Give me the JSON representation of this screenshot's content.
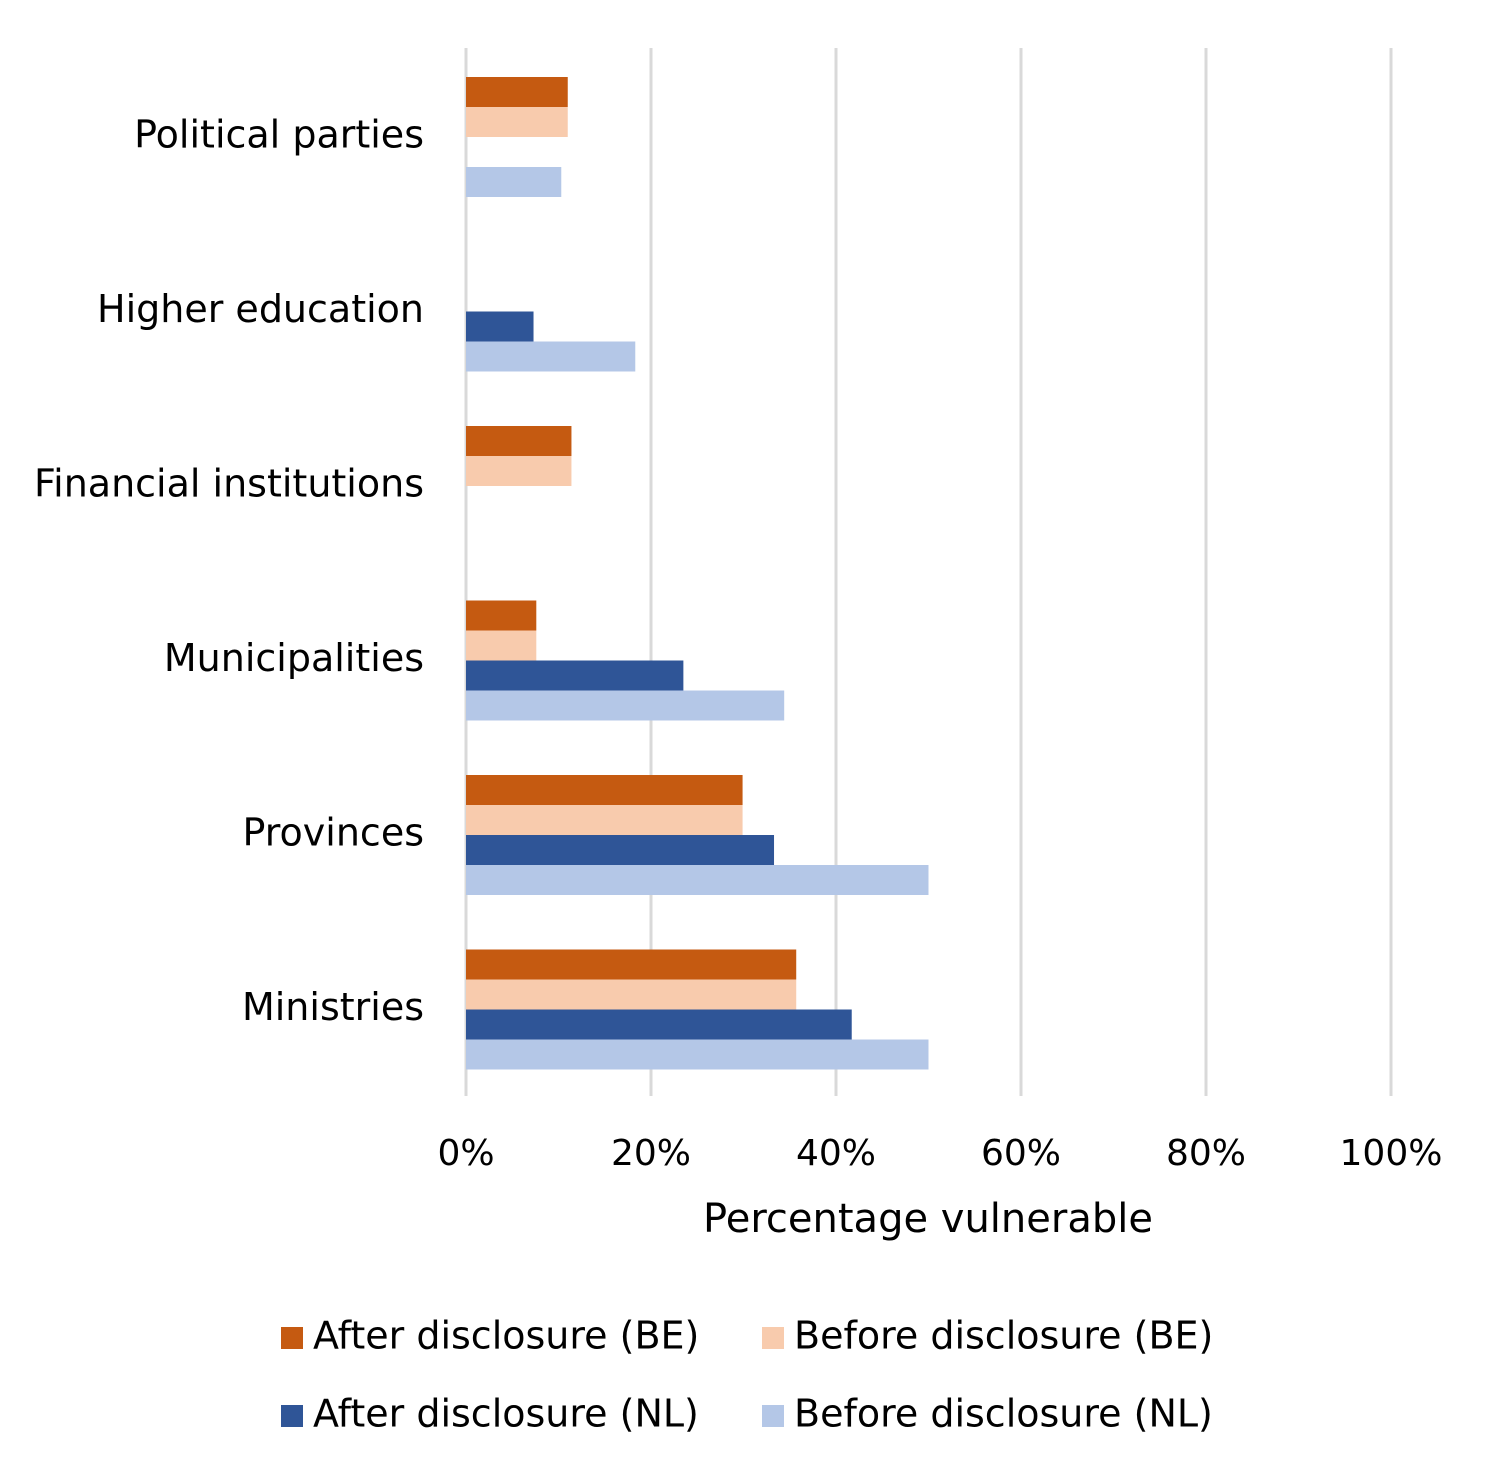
{
  "chart_data": {
    "type": "bar",
    "orientation": "horizontal",
    "categories": [
      "Political parties",
      "Higher education",
      "Financial institutions",
      "Municipalities",
      "Provinces",
      "Ministries"
    ],
    "series": [
      {
        "name": "After disclosure (BE)",
        "color": "#C55A11",
        "values": [
          11,
          null,
          11.4,
          7.6,
          29.9,
          35.7
        ]
      },
      {
        "name": "Before disclosure (BE)",
        "color": "#F8CBAD",
        "values": [
          11,
          null,
          11.4,
          7.6,
          29.9,
          35.7
        ]
      },
      {
        "name": "After disclosure (NL)",
        "color": "#2F5597",
        "values": [
          null,
          7.3,
          null,
          23.5,
          33.3,
          41.7
        ]
      },
      {
        "name": "Before disclosure (NL)",
        "color": "#B4C7E7",
        "values": [
          10.3,
          18.3,
          null,
          34.4,
          50,
          50
        ]
      }
    ],
    "xlabel": "Percentage vulnerable",
    "ylabel": "",
    "xlim": [
      0,
      100
    ],
    "xticks": [
      "0%",
      "20%",
      "40%",
      "60%",
      "80%",
      "100%"
    ],
    "grid": true,
    "legend": "bottom"
  }
}
